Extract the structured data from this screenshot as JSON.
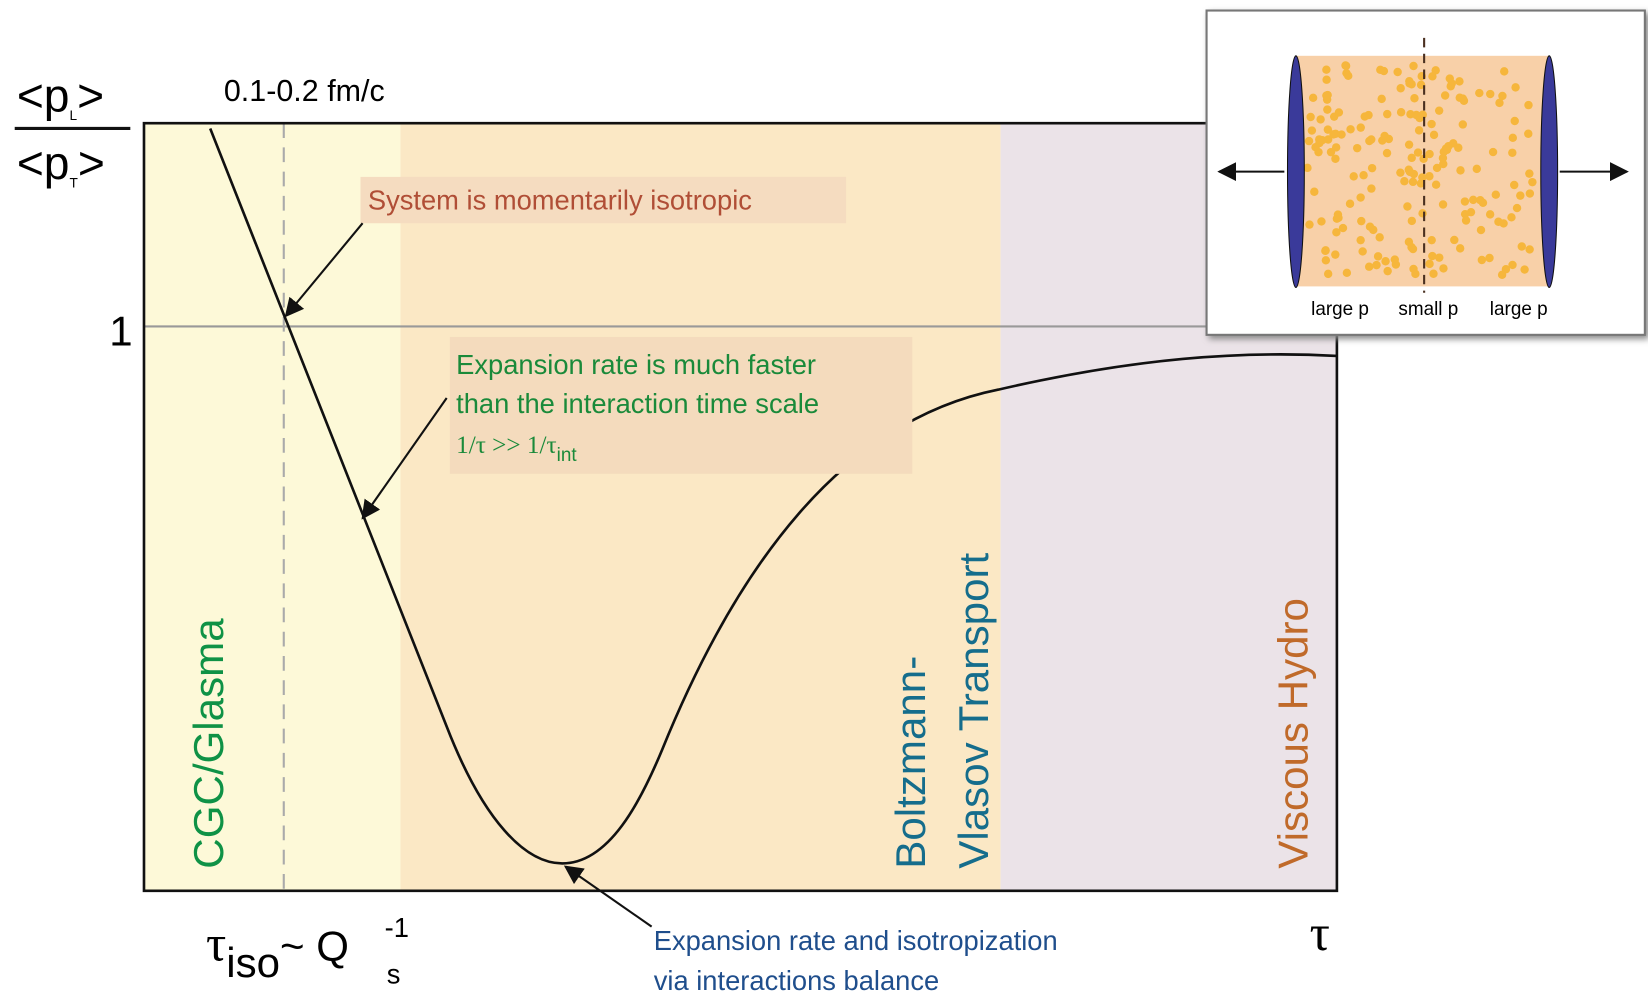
{
  "y_label": {
    "numerator": {
      "open": "<p",
      "sub": "L",
      "close": ">"
    },
    "denominator": {
      "open": "<p",
      "sub": "T",
      "close": ">"
    }
  },
  "time_note": "0.1-0.2 fm/c",
  "one_label": "1",
  "annotations": {
    "isotropic": "System is momentarily isotropic",
    "expansion": {
      "lines": [
        "Expansion rate is much faster",
        "than the interaction time scale"
      ],
      "formula": "1/τ >> 1/τ",
      "formula_sub": "int"
    },
    "balance": [
      "Expansion rate and isotropization",
      "via interactions balance"
    ]
  },
  "regions": {
    "cgc": "CGC/Glasma",
    "transport": [
      "Boltzmann-",
      "Vlasov Transport"
    ],
    "hydro": "Viscous Hydro"
  },
  "x_labels": {
    "tau": "τ",
    "tau_iso": {
      "tau": "τ",
      "iso": "iso",
      "tilde_q": "~ Q",
      "exp": "-1",
      "sub": "s"
    }
  },
  "inset": {
    "labels": [
      "large p",
      "small p",
      "large p"
    ]
  }
}
